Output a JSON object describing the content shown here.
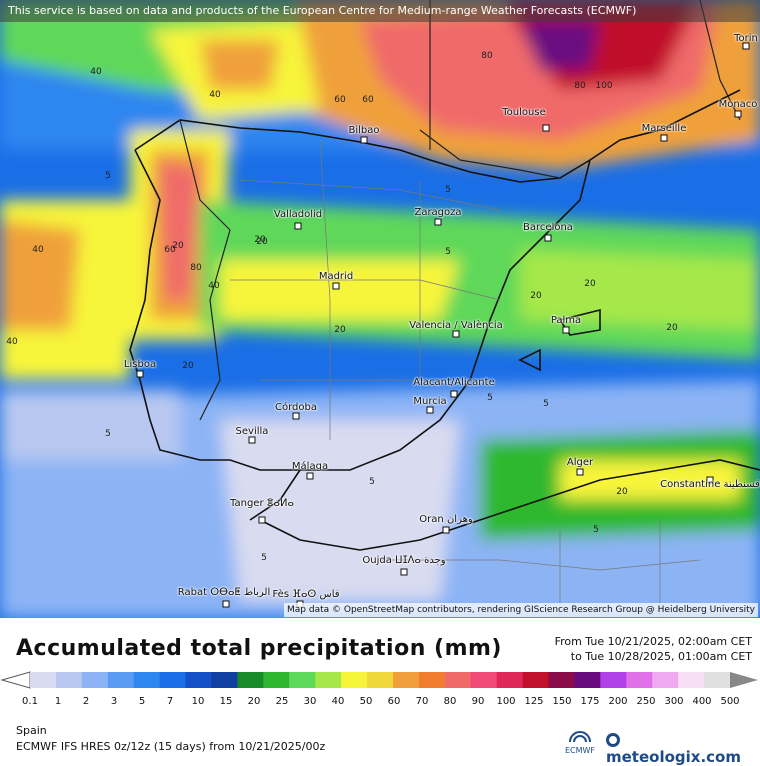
{
  "banner": {
    "text": "This service is based on data and products of the European Centre for Medium-range Weather Forecasts (ECMWF)"
  },
  "attribution": {
    "text": "Map data © OpenStreetMap contributors, rendering GIScience Research Group @ Heidelberg University"
  },
  "cities": [
    {
      "name": "Bilbao"
    },
    {
      "name": "Toulouse"
    },
    {
      "name": "Marseille"
    },
    {
      "name": "Monaco"
    },
    {
      "name": "Torin"
    },
    {
      "name": "Valladolid"
    },
    {
      "name": "Zaragoza"
    },
    {
      "name": "Barcelona"
    },
    {
      "name": "Madrid"
    },
    {
      "name": "Valencia / València"
    },
    {
      "name": "Palma"
    },
    {
      "name": "Lisboa"
    },
    {
      "name": "Córdoba"
    },
    {
      "name": "Sevilla"
    },
    {
      "name": "Murcia"
    },
    {
      "name": "Alacant/Alicante"
    },
    {
      "name": "Málaga"
    },
    {
      "name": "Alger"
    },
    {
      "name": "Constantine قسنطينة"
    },
    {
      "name": "Tanger ⴻⴰⵍⴰ"
    },
    {
      "name": "Oran وهران"
    },
    {
      "name": "Oujda ⵡⵊⴷⴰ وجدة"
    },
    {
      "name": "Rabat ⵔⴱⴰⵟ الرباط"
    },
    {
      "name": "Fès ⴼⴰⵙ فاس"
    }
  ],
  "contours": [
    "40",
    "60",
    "80",
    "20",
    "5",
    "60",
    "80",
    "40",
    "20",
    "5",
    "40",
    "20",
    "40",
    "60",
    "80",
    "100",
    "20",
    "5",
    "5",
    "5",
    "20",
    "20",
    "5",
    "40",
    "20",
    "5",
    "5",
    "5",
    "20",
    "20"
  ],
  "legend": {
    "title": "Accumulated total precipitation (mm)",
    "period_from": "From Tue 10/21/2025, 02:00am CET",
    "period_to": "to Tue 10/28/2025, 01:00am CET",
    "ticks": [
      "0.1",
      "1",
      "2",
      "3",
      "5",
      "7",
      "10",
      "15",
      "20",
      "25",
      "30",
      "40",
      "50",
      "60",
      "70",
      "80",
      "90",
      "100",
      "125",
      "150",
      "175",
      "200",
      "250",
      "300",
      "400",
      "500"
    ],
    "colors": [
      "#d9dcf0",
      "#b8c8f0",
      "#8cb4f5",
      "#5a9cf5",
      "#2e86f0",
      "#1a6ee6",
      "#1450c8",
      "#0f3fa0",
      "#188a2a",
      "#2fb82f",
      "#5ed85a",
      "#a6e84a",
      "#f7f53a",
      "#f1d83a",
      "#f0a03a",
      "#f07e2e",
      "#f06a6a",
      "#f04a78",
      "#e02858",
      "#c0102a",
      "#8a0a4a",
      "#6a0a80",
      "#b040e8",
      "#e070e8",
      "#f0a8f0",
      "#f5e0f5",
      "#e0e0e0"
    ]
  },
  "region": "Spain",
  "model": "ECMWF IFS HRES 0z/12z (15 days) from 10/21/2025/00z",
  "logos": {
    "ecmwf": "ECMWF",
    "meteologix": "meteologix.com"
  }
}
